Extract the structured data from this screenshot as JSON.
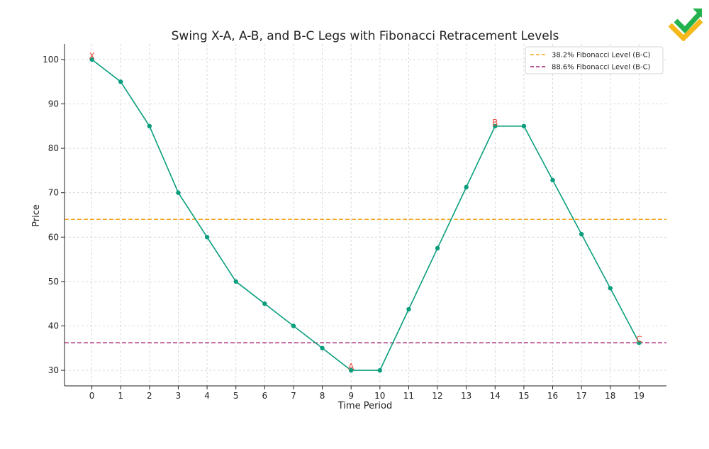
{
  "chart_data": {
    "type": "line",
    "title": "Swing X-A, A-B, and B-C Legs with Fibonacci Retracement Levels",
    "xlabel": "Time Period",
    "ylabel": "Price",
    "xlim": [
      -0.95,
      19.95
    ],
    "ylim": [
      26.5,
      103.5
    ],
    "x_ticks": [
      0,
      1,
      2,
      3,
      4,
      5,
      6,
      7,
      8,
      9,
      10,
      11,
      12,
      13,
      14,
      15,
      16,
      17,
      18,
      19
    ],
    "y_ticks": [
      30,
      40,
      50,
      60,
      70,
      80,
      90,
      100
    ],
    "grid": true,
    "legend_position": "top-right",
    "series": [
      {
        "x": [
          0,
          1,
          2,
          3,
          4,
          5,
          6,
          7,
          8,
          9,
          10,
          11,
          12,
          13,
          14,
          15,
          16,
          17,
          18,
          19
        ],
        "values": [
          100,
          95,
          85,
          70,
          60,
          50,
          45,
          40,
          35,
          30,
          30,
          43.75,
          57.5,
          71.25,
          85,
          85,
          72.83,
          60.67,
          48.5,
          36.2
        ],
        "color": "#0a9e7d"
      }
    ],
    "hlines": [
      {
        "name": "38.2% Fibonacci Level (B-C)",
        "value": 64.0,
        "color": "#f5a623"
      },
      {
        "name": "88.6% Fibonacci Level (B-C)",
        "value": 36.2,
        "color": "#a0186b"
      }
    ],
    "annotations": [
      {
        "text": "X",
        "x": 0,
        "y": 100,
        "color": "#e8483b"
      },
      {
        "text": "A",
        "x": 9,
        "y": 30,
        "color": "#e8483b"
      },
      {
        "text": "B",
        "x": 14,
        "y": 85,
        "color": "#e8483b"
      },
      {
        "text": "C",
        "x": 19,
        "y": 36.2,
        "color": "#e8483b"
      }
    ]
  },
  "logo": {
    "colors": [
      "#22b14c",
      "#f6b81a"
    ]
  }
}
